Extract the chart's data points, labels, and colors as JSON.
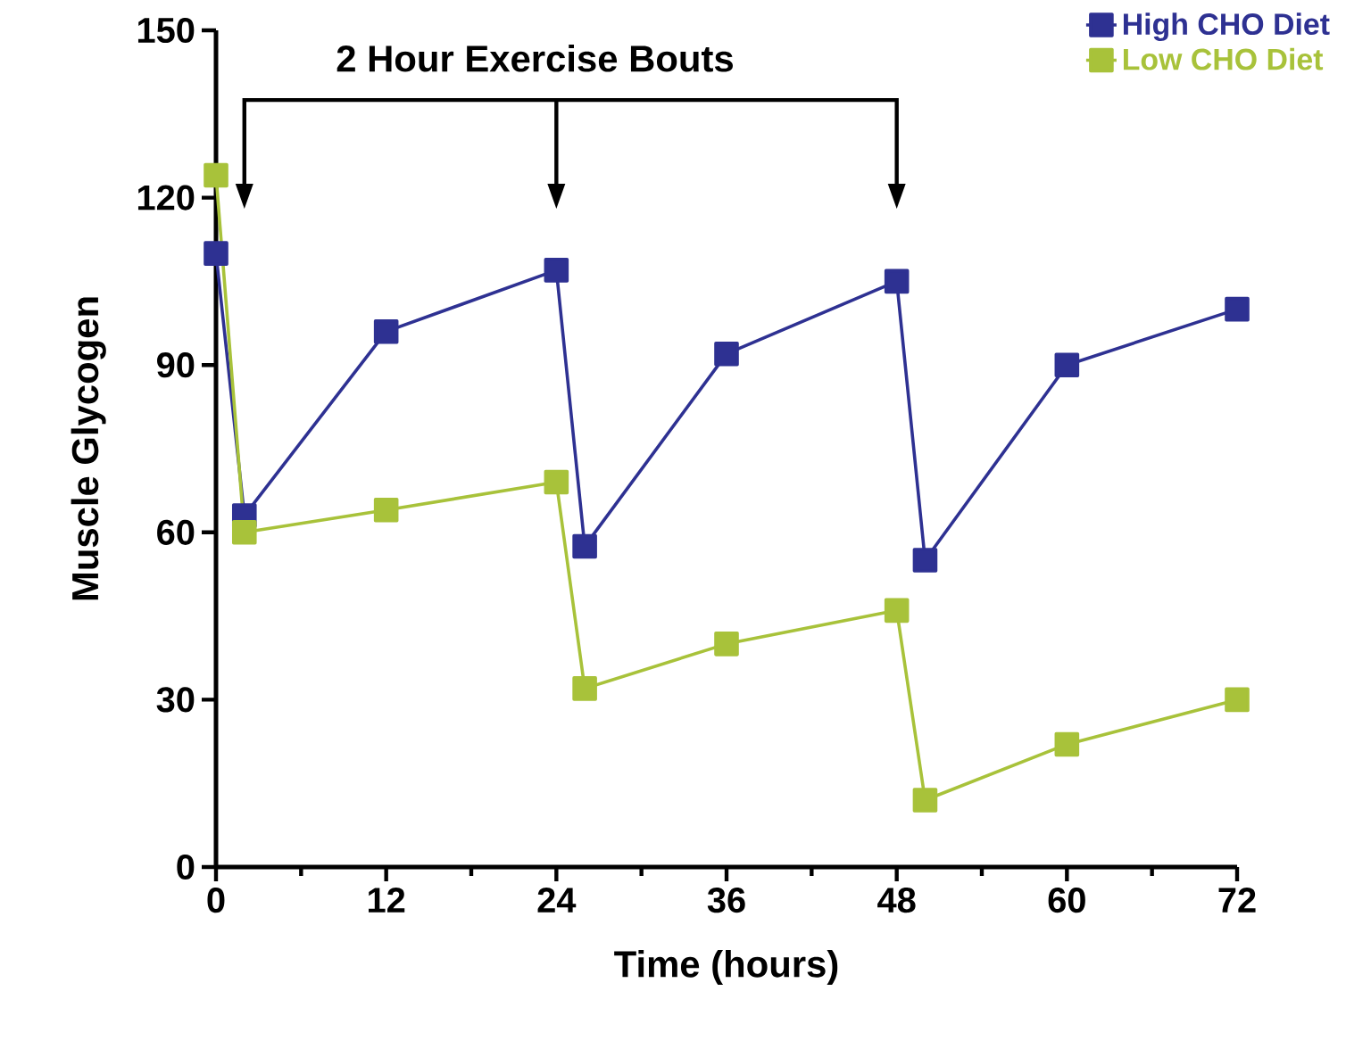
{
  "chart_data": {
    "type": "line",
    "xlabel": "Time  (hours)",
    "ylabel": "Muscle Glycogen",
    "x": [
      0,
      2,
      12,
      24,
      26,
      36,
      48,
      50,
      60,
      72
    ],
    "series": [
      {
        "name": "High CHO Diet",
        "color": "#2e3192",
        "values": [
          110,
          63,
          96,
          107,
          57.5,
          92,
          105,
          55,
          90,
          100
        ]
      },
      {
        "name": "Low CHO Diet",
        "color": "#a8c23a",
        "values": [
          124,
          60,
          64,
          69,
          32,
          40,
          46,
          12,
          22,
          30
        ]
      }
    ],
    "xlim": [
      0,
      72
    ],
    "ylim": [
      0,
      150
    ],
    "xticks": [
      0,
      {
        "value": 6,
        "label": null
      },
      12,
      {
        "value": 18,
        "label": null
      },
      24,
      {
        "value": 30,
        "label": null
      },
      36,
      {
        "value": 42,
        "label": null
      },
      48,
      {
        "value": 54,
        "label": null
      },
      60,
      {
        "value": 66,
        "label": null
      },
      72
    ],
    "yticks": [
      0,
      30,
      60,
      90,
      120,
      150
    ],
    "annotations": [
      "2 Hour Exercise Bouts"
    ],
    "legend": "top right",
    "marker": "square",
    "line_style": "solid",
    "grid": false
  }
}
